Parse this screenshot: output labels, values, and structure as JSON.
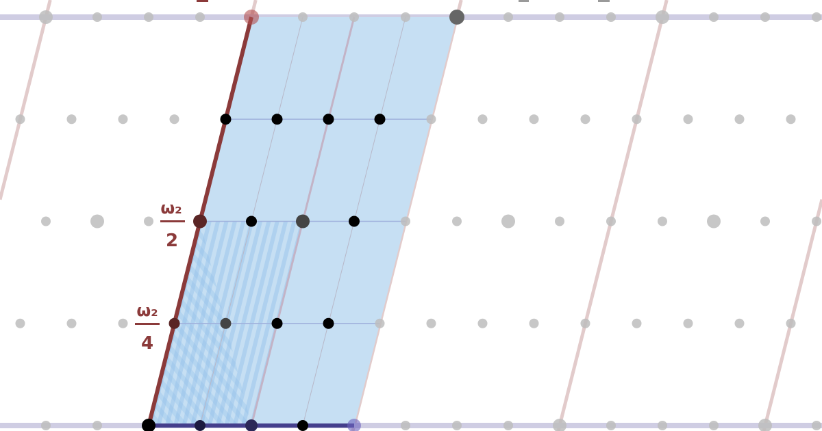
{
  "labels": {
    "half": {
      "num": "ω₂",
      "den": "2"
    },
    "quarter": {
      "num": "ω₂",
      "den": "4"
    }
  },
  "colors": {
    "cell_fill": "#c6dff3",
    "stripe": "#a9cdee",
    "omega2_edge": "#8b3a3a",
    "omega1_edge": "#453f8c",
    "lattice_line": "#e2cbcb",
    "row_line": "#cfcde3",
    "grid_dot": "#bdbdbd",
    "interior_dot": "#000000",
    "label": "#8b3a3a",
    "clipped_label_gray": "#9a9a9a"
  }
}
